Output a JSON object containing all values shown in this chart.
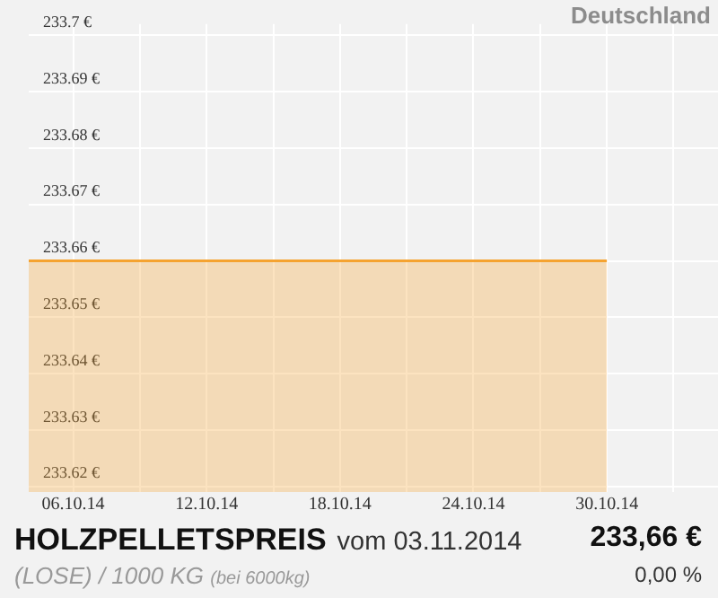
{
  "chart_data": {
    "type": "area",
    "title": "HOLZPELLETSPREIS",
    "subtitle": "vom 03.11.2014",
    "annotations": [
      "Deutschland",
      "(LOSE) / 1000 KG",
      "(bei 6000kg)",
      "233,66 €",
      "0,00 %"
    ],
    "x": [
      "2014-10-04",
      "2014-10-30"
    ],
    "series": [
      {
        "color": "#f5a330",
        "values": [
          233.66,
          233.66
        ]
      }
    ],
    "xlim": [
      "2014-10-04",
      "2014-11-04"
    ],
    "xticks": [
      {
        "value": "2014-10-06",
        "label": "06.10.14"
      },
      {
        "value": "2014-10-09",
        "label": null
      },
      {
        "value": "2014-10-12",
        "label": "12.10.14"
      },
      {
        "value": "2014-10-15",
        "label": null
      },
      {
        "value": "2014-10-18",
        "label": "18.10.14"
      },
      {
        "value": "2014-10-21",
        "label": null
      },
      {
        "value": "2014-10-24",
        "label": "24.10.14"
      },
      {
        "value": "2014-10-27",
        "label": null
      },
      {
        "value": "2014-10-30",
        "label": "30.10.14"
      },
      {
        "value": "2014-11-02",
        "label": null
      }
    ],
    "ylim": [
      233.619,
      233.702
    ],
    "yticks": [
      {
        "value": 233.62,
        "label": "233.62 €"
      },
      {
        "value": 233.63,
        "label": "233.63 €"
      },
      {
        "value": 233.64,
        "label": "233.64 €"
      },
      {
        "value": 233.65,
        "label": "233.65 €"
      },
      {
        "value": 233.66,
        "label": "233.66 €"
      },
      {
        "value": 233.67,
        "label": "233.67 €"
      },
      {
        "value": 233.68,
        "label": "233.68 €"
      },
      {
        "value": 233.69,
        "label": "233.69 €"
      },
      {
        "value": 233.7,
        "label": "233.7 €"
      }
    ],
    "grid": true,
    "legend": false
  }
}
